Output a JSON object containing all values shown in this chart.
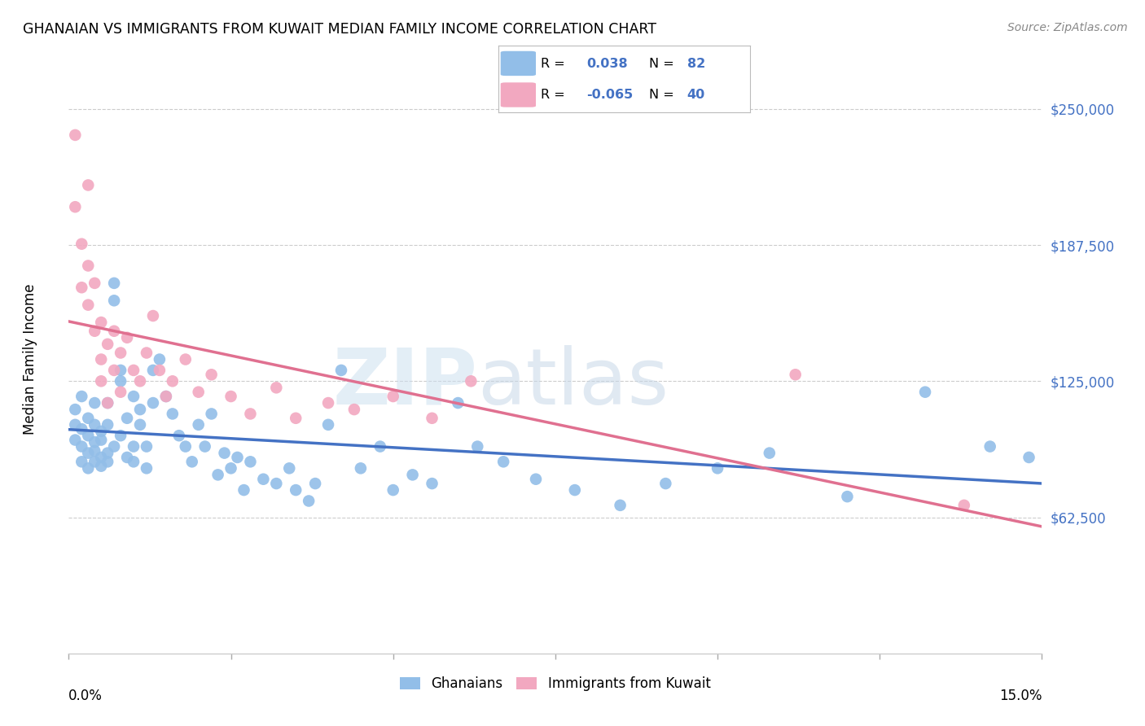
{
  "title": "GHANAIAN VS IMMIGRANTS FROM KUWAIT MEDIAN FAMILY INCOME CORRELATION CHART",
  "source": "Source: ZipAtlas.com",
  "ylabel": "Median Family Income",
  "yticks": [
    0,
    62500,
    125000,
    187500,
    250000
  ],
  "ytick_labels": [
    "",
    "$62,500",
    "$125,000",
    "$187,500",
    "$250,000"
  ],
  "xlim": [
    0.0,
    0.15
  ],
  "ylim": [
    0,
    270000
  ],
  "blue_color": "#92BEE8",
  "pink_color": "#F2A8C0",
  "blue_line_color": "#4472C4",
  "pink_line_color": "#E07090",
  "R_blue": 0.038,
  "N_blue": 82,
  "R_pink": -0.065,
  "N_pink": 40,
  "ghanaian_x": [
    0.001,
    0.001,
    0.001,
    0.002,
    0.002,
    0.002,
    0.002,
    0.003,
    0.003,
    0.003,
    0.003,
    0.004,
    0.004,
    0.004,
    0.004,
    0.004,
    0.005,
    0.005,
    0.005,
    0.005,
    0.006,
    0.006,
    0.006,
    0.006,
    0.007,
    0.007,
    0.007,
    0.008,
    0.008,
    0.008,
    0.009,
    0.009,
    0.01,
    0.01,
    0.01,
    0.011,
    0.011,
    0.012,
    0.012,
    0.013,
    0.013,
    0.014,
    0.015,
    0.016,
    0.017,
    0.018,
    0.019,
    0.02,
    0.021,
    0.022,
    0.023,
    0.024,
    0.025,
    0.026,
    0.027,
    0.028,
    0.03,
    0.032,
    0.034,
    0.035,
    0.037,
    0.038,
    0.04,
    0.042,
    0.045,
    0.048,
    0.05,
    0.053,
    0.056,
    0.06,
    0.063,
    0.067,
    0.072,
    0.078,
    0.085,
    0.092,
    0.1,
    0.108,
    0.12,
    0.132,
    0.142,
    0.148
  ],
  "ghanaian_y": [
    105000,
    98000,
    112000,
    95000,
    103000,
    118000,
    88000,
    92000,
    100000,
    108000,
    85000,
    97000,
    105000,
    88000,
    115000,
    93000,
    90000,
    102000,
    86000,
    98000,
    92000,
    105000,
    88000,
    115000,
    170000,
    162000,
    95000,
    130000,
    125000,
    100000,
    108000,
    90000,
    88000,
    95000,
    118000,
    105000,
    112000,
    85000,
    95000,
    130000,
    115000,
    135000,
    118000,
    110000,
    100000,
    95000,
    88000,
    105000,
    95000,
    110000,
    82000,
    92000,
    85000,
    90000,
    75000,
    88000,
    80000,
    78000,
    85000,
    75000,
    70000,
    78000,
    105000,
    130000,
    85000,
    95000,
    75000,
    82000,
    78000,
    115000,
    95000,
    88000,
    80000,
    75000,
    68000,
    78000,
    85000,
    92000,
    72000,
    120000,
    95000,
    90000
  ],
  "kuwait_x": [
    0.001,
    0.001,
    0.002,
    0.002,
    0.003,
    0.003,
    0.003,
    0.004,
    0.004,
    0.005,
    0.005,
    0.005,
    0.006,
    0.006,
    0.007,
    0.007,
    0.008,
    0.008,
    0.009,
    0.01,
    0.011,
    0.012,
    0.013,
    0.014,
    0.015,
    0.016,
    0.018,
    0.02,
    0.022,
    0.025,
    0.028,
    0.032,
    0.035,
    0.04,
    0.044,
    0.05,
    0.056,
    0.062,
    0.112,
    0.138
  ],
  "kuwait_y": [
    238000,
    205000,
    188000,
    168000,
    178000,
    215000,
    160000,
    148000,
    170000,
    135000,
    152000,
    125000,
    142000,
    115000,
    148000,
    130000,
    138000,
    120000,
    145000,
    130000,
    125000,
    138000,
    155000,
    130000,
    118000,
    125000,
    135000,
    120000,
    128000,
    118000,
    110000,
    122000,
    108000,
    115000,
    112000,
    118000,
    108000,
    125000,
    128000,
    68000
  ]
}
